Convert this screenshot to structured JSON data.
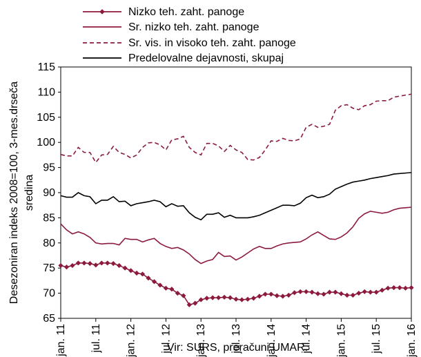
{
  "chart_data": {
    "type": "line",
    "ylabel": "Desezoniran indeks 2008=100, 3-mes.drseča sredina",
    "ylim": [
      65,
      115
    ],
    "yticks": [
      65,
      70,
      75,
      80,
      85,
      90,
      95,
      100,
      105,
      110,
      115
    ],
    "xticks": [
      "jan. 11",
      "jul. 11",
      "jan. 12",
      "jul. 12",
      "jan. 13",
      "jul. 13",
      "jan. 14",
      "jul. 14",
      "jan. 15",
      "jul. 15",
      "jan. 16"
    ],
    "x_start": "jan. 11",
    "x_months": 60,
    "grid": false,
    "legend": "top",
    "source": "Vir: SURS, preračuni UMAR.",
    "series": [
      {
        "name": "Nizko teh. zaht. panoge",
        "color": "#8b1a3c",
        "style": "solid-markers",
        "values": [
          75.5,
          75.2,
          75.5,
          76.0,
          76.0,
          75.9,
          75.6,
          76.0,
          76.0,
          75.9,
          75.5,
          75.0,
          74.5,
          74.0,
          73.8,
          73.0,
          72.3,
          71.6,
          71.0,
          70.8,
          70.0,
          69.5,
          67.7,
          68.0,
          68.7,
          69.0,
          69.1,
          69.1,
          69.2,
          69.1,
          68.8,
          68.7,
          68.8,
          69.0,
          69.4,
          69.8,
          69.8,
          69.5,
          69.4,
          69.6,
          70.1,
          70.3,
          70.3,
          70.2,
          69.9,
          69.8,
          70.2,
          70.2,
          69.9,
          69.6,
          69.6,
          70.0,
          70.3,
          70.2,
          70.2,
          70.6,
          71.0,
          71.1,
          71.1,
          71.0,
          71.1
        ]
      },
      {
        "name": "Sr. nizko teh. zaht. panoge",
        "color": "#8b1a3c",
        "style": "solid",
        "values": [
          83.8,
          82.6,
          81.8,
          82.2,
          81.8,
          81.1,
          80.0,
          79.8,
          79.9,
          79.9,
          79.6,
          80.9,
          80.7,
          80.7,
          80.2,
          80.6,
          80.9,
          79.9,
          79.3,
          78.9,
          79.1,
          78.6,
          77.8,
          76.7,
          75.9,
          76.4,
          76.7,
          78.1,
          77.3,
          77.4,
          76.6,
          77.2,
          78.0,
          78.8,
          79.3,
          78.9,
          78.9,
          79.4,
          79.8,
          80.0,
          80.1,
          80.2,
          80.8,
          81.6,
          82.2,
          81.5,
          80.8,
          80.7,
          81.2,
          82.0,
          83.2,
          84.9,
          85.8,
          86.3,
          86.1,
          85.9,
          86.1,
          86.6,
          86.9,
          87.0,
          87.1
        ]
      },
      {
        "name": "Sr. vis. in visoko teh. zaht. panoge",
        "color": "#8b1a3c",
        "style": "dashed",
        "values": [
          97.6,
          97.3,
          97.3,
          99.0,
          98.0,
          98.0,
          96.0,
          97.5,
          97.6,
          99.2,
          98.0,
          97.6,
          96.9,
          97.5,
          99.0,
          99.9,
          100.0,
          99.5,
          98.5,
          100.5,
          100.7,
          101.2,
          99.0,
          98.0,
          97.5,
          99.8,
          99.8,
          99.3,
          98.2,
          99.4,
          98.5,
          98.0,
          96.6,
          96.5,
          97.0,
          98.5,
          100.3,
          100.2,
          100.8,
          100.4,
          100.3,
          100.7,
          103.0,
          103.6,
          103.0,
          103.2,
          103.6,
          106.4,
          107.3,
          107.5,
          106.8,
          106.5,
          107.3,
          107.5,
          108.2,
          108.3,
          108.3,
          109.0,
          109.2,
          109.4,
          109.6
        ]
      },
      {
        "name": "Predelovalne dejavnosti, skupaj",
        "color": "#000000",
        "style": "solid",
        "values": [
          89.4,
          89.1,
          89.1,
          90.0,
          89.4,
          89.2,
          87.8,
          88.5,
          88.5,
          89.2,
          88.2,
          88.3,
          87.4,
          87.8,
          88.0,
          88.2,
          88.5,
          88.2,
          87.2,
          87.8,
          87.3,
          87.4,
          86.0,
          85.1,
          84.6,
          85.7,
          85.7,
          86.0,
          85.1,
          85.5,
          85.0,
          85.0,
          85.0,
          85.2,
          85.5,
          86.0,
          86.5,
          87.0,
          87.5,
          87.5,
          87.4,
          87.9,
          89.0,
          89.5,
          89.0,
          89.2,
          89.7,
          90.7,
          91.2,
          91.7,
          92.1,
          92.3,
          92.5,
          92.8,
          93.0,
          93.2,
          93.4,
          93.7,
          93.8,
          93.9,
          94.0
        ]
      }
    ]
  }
}
